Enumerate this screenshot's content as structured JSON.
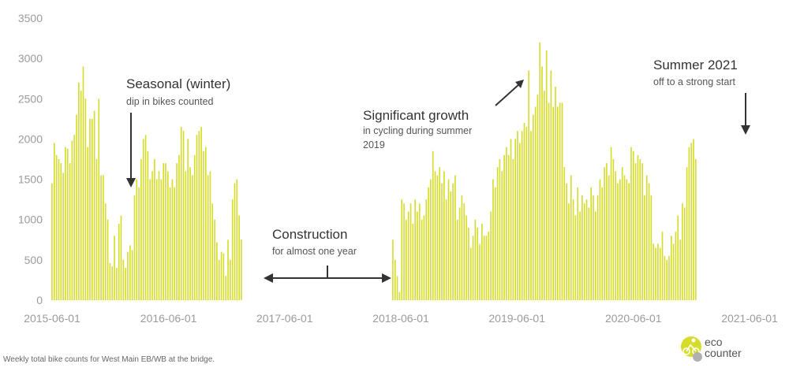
{
  "chart_data": {
    "type": "bar",
    "title": "",
    "xlabel": "",
    "ylabel": "",
    "ylim": [
      0,
      3500
    ],
    "y_ticks": [
      "0",
      "500",
      "1000",
      "1500",
      "2000",
      "2500",
      "3000",
      "3500"
    ],
    "x_ticks": [
      "2015-06-01",
      "2016-06-01",
      "2017-06-01",
      "2018-06-01",
      "2019-06-01",
      "2020-06-01",
      "2021-06-01"
    ],
    "x_tick_dates": [
      "2015-06-01",
      "2016-06-01",
      "2017-06-01",
      "2018-06-01",
      "2019-06-01",
      "2020-06-01",
      "2021-06-01"
    ],
    "grid": false,
    "bar_color": "#d6dc2b",
    "series": [
      {
        "segments": [
          {
            "start_week": "2015-06-01",
            "values": [
              1450,
              1950,
              1800,
              1750,
              1700,
              1580,
              1900,
              1880,
              1700,
              1980,
              2050,
              2300,
              2700,
              2600,
              2900,
              2500,
              1900,
              2250,
              2250,
              2350,
              1750,
              2500,
              1550,
              1550,
              1200,
              1000,
              460,
              420,
              800,
              400,
              950,
              1050,
              500,
              400,
              600,
              680,
              620,
              1300,
              1500,
              1400,
              1750,
              2000,
              2050,
              1850,
              1500,
              1600,
              1750,
              1500,
              1600,
              1500,
              1700,
              1700,
              1600,
              1400,
              1500,
              1400,
              1700,
              1800,
              2150,
              2100,
              1600,
              2000,
              1650,
              1550,
              1800,
              2050,
              2100,
              2150,
              1850,
              1900,
              1550,
              1600,
              1200,
              1000,
              720,
              500,
              600,
              580,
              300,
              750,
              500,
              1250,
              1450,
              1500,
              1050,
              750
            ]
          },
          {
            "start_week": "2018-05-07",
            "values": [
              750,
              500,
              300,
              100,
              1250,
              1200,
              1000,
              1100,
              1200,
              950,
              1250,
              1100,
              1200,
              1000,
              1050,
              1250,
              1400,
              1500,
              1850,
              1600,
              1550,
              1650,
              1450,
              1600,
              1250,
              1500,
              1350,
              1450,
              1550,
              1000,
              1150,
              1300,
              1200,
              1050,
              900,
              650,
              800,
              1000,
              900,
              700,
              950,
              800,
              800,
              850,
              1100,
              1500,
              1400,
              1650,
              1750,
              1600,
              1800,
              1900,
              1800,
              2000,
              1750,
              2000,
              2100,
              1950,
              2100,
              2200,
              2150,
              2850,
              2100,
              2300,
              2400,
              2550,
              3200,
              2900,
              2600,
              3100,
              2450,
              2850,
              2400,
              2650,
              2400,
              2450,
              2450,
              1650,
              1450,
              1200,
              1550,
              1250,
              1050,
              1400,
              1100,
              1300,
              1200,
              1250,
              1150,
              1400,
              1300,
              1100,
              1300,
              1500,
              1400,
              1650,
              1700,
              1550,
              1900,
              1750,
              1600,
              1450,
              1500,
              1650,
              1550,
              1500,
              1450,
              1900,
              1850,
              1700,
              1800,
              1750,
              1700,
              1300,
              1550,
              1450,
              1300,
              700,
              650,
              700,
              650,
              850,
              550,
              500,
              550,
              800,
              700,
              850,
              1050,
              750,
              1200,
              1150,
              1650,
              1900,
              1950,
              2000,
              1750
            ]
          }
        ]
      }
    ],
    "annotations": [
      {
        "title": "Seasonal (winter)",
        "subtitle": "dip in bikes counted"
      },
      {
        "title": "Construction",
        "subtitle": "for almost one year"
      },
      {
        "title": "Significant growth",
        "subtitle": "in cycling during summer 2019"
      },
      {
        "title": "Summer 2021",
        "subtitle": "off to a strong start"
      }
    ]
  },
  "caption": "Weekly total bike counts for West Main EB/WB at the bridge.",
  "logo": {
    "line1": "eco",
    "line2": "counter",
    "color": "#b9bf25"
  }
}
